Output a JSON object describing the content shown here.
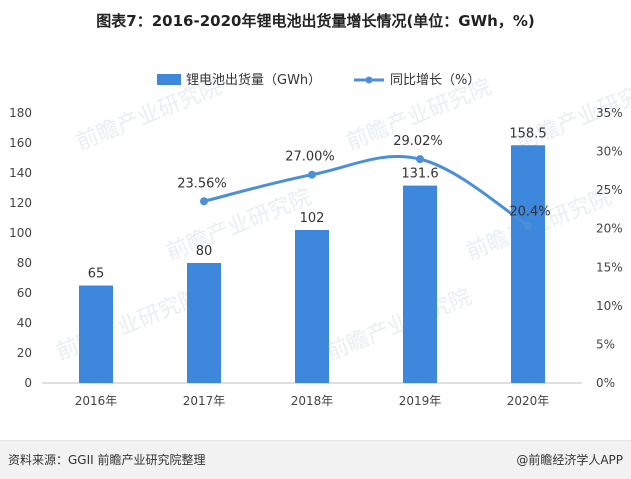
{
  "title": "图表7：2016-2020年锂电池出货量增长情况(单位：GWh，%)",
  "source": "资料来源：GGII 前瞻产业研究院整理",
  "brand": "@前瞻经济学人APP",
  "watermark": "前瞻产业研究院",
  "colors": {
    "bar": "#3d87dc",
    "line": "#4b8fd6"
  },
  "chart_data": {
    "type": "bar+line",
    "categories": [
      "2016年",
      "2017年",
      "2018年",
      "2019年",
      "2020年"
    ],
    "series": [
      {
        "name": "锂电池出货量（GWh）",
        "type": "bar",
        "axis": "left",
        "values": [
          65,
          80,
          102,
          131.6,
          158.5
        ],
        "labels": [
          "65",
          "80",
          "102",
          "131.6",
          "158.5"
        ]
      },
      {
        "name": "同比增长（%）",
        "type": "line",
        "axis": "right",
        "values": [
          null,
          23.56,
          27.0,
          29.02,
          20.4
        ],
        "labels": [
          "",
          "23.56%",
          "27.00%",
          "29.02%",
          "20.4%"
        ]
      }
    ],
    "y_left": {
      "ticks": [
        "0",
        "20",
        "40",
        "60",
        "80",
        "100",
        "120",
        "140",
        "160",
        "180"
      ],
      "range": [
        0,
        180
      ]
    },
    "y_right": {
      "ticks": [
        "0%",
        "5%",
        "10%",
        "15%",
        "20%",
        "25%",
        "30%",
        "35%"
      ],
      "range": [
        0,
        35
      ]
    },
    "legend_position": "top",
    "grid": false
  }
}
